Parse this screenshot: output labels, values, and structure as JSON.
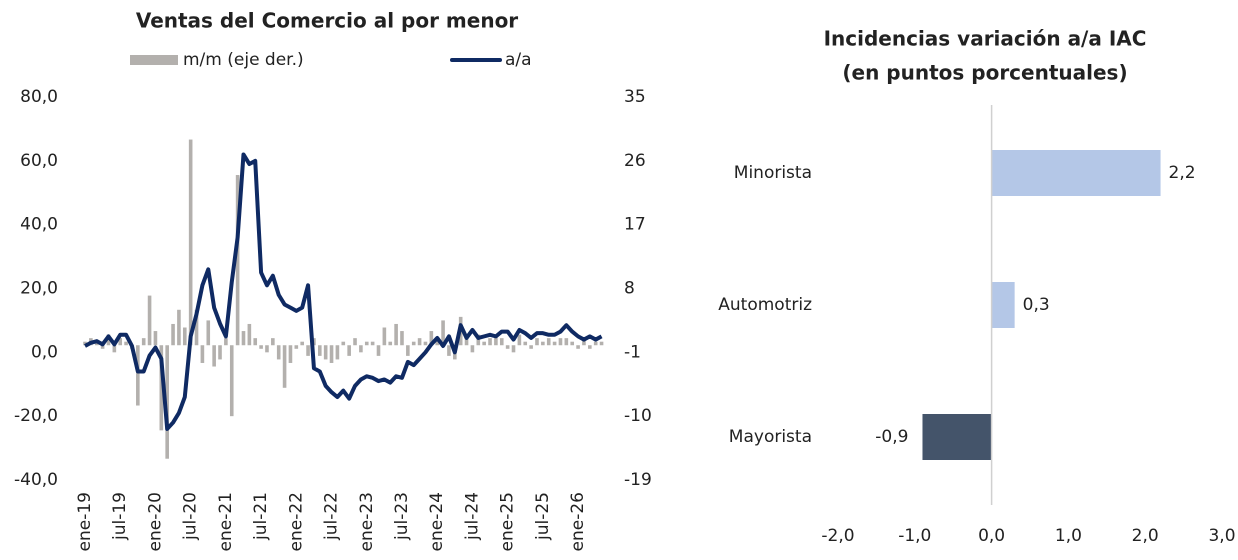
{
  "chart_data": [
    {
      "type": "bar-line",
      "title": "Ventas del Comercio al por menor",
      "categories": [
        "ene-19",
        null,
        null,
        null,
        null,
        null,
        "jul-19",
        null,
        null,
        null,
        null,
        null,
        "ene-20",
        null,
        null,
        null,
        null,
        null,
        "jul-20",
        null,
        null,
        null,
        null,
        null,
        "ene-21",
        null,
        null,
        null,
        null,
        null,
        "jul-21",
        null,
        null,
        null,
        null,
        null,
        "ene-22",
        null,
        null,
        null,
        null,
        null,
        "jul-22",
        null,
        null,
        null,
        null,
        null,
        "ene-23",
        null,
        null,
        null,
        null,
        null,
        "jul-23",
        null,
        null,
        null,
        null,
        null,
        "ene-24",
        null,
        null,
        null,
        null,
        null,
        "jul-24",
        null,
        null,
        null,
        null,
        null,
        "ene-25",
        null,
        null,
        null,
        null,
        null,
        "jul-25",
        null,
        null,
        null,
        null,
        null,
        "ene-26",
        null,
        null,
        null,
        null
      ],
      "series": [
        {
          "name": "m/m (eje der.)",
          "mark": "bar",
          "axis": "y2",
          "color": "#b3b0ad",
          "values": [
            0.5,
            1,
            0.5,
            -0.5,
            1.5,
            -1,
            1,
            0.5,
            -0.5,
            -8.5,
            1,
            7,
            2,
            -12,
            -16,
            3,
            5,
            2.5,
            29,
            5,
            -2.5,
            3.5,
            -3,
            -2,
            1,
            -10,
            24,
            2,
            3,
            1,
            -0.5,
            -1,
            1,
            -2,
            -6,
            -2.5,
            -0.5,
            0.5,
            -1.5,
            1,
            -1.5,
            -2,
            -2.5,
            -2,
            0.5,
            -1.5,
            1,
            -1,
            0.5,
            0.5,
            -1.5,
            2.5,
            0.5,
            3,
            2,
            -1.5,
            0.5,
            1,
            0.5,
            2,
            1,
            3.5,
            -1.5,
            -2,
            4,
            1,
            -1,
            1.5,
            0.5,
            1,
            1.5,
            1,
            -0.5,
            -1,
            1.5,
            0.5,
            -0.5,
            1,
            0.5,
            1,
            0.5,
            1,
            1,
            0.5,
            -0.5,
            1,
            -0.5,
            0.5,
            0.5
          ]
        },
        {
          "name": "a/a",
          "mark": "line",
          "color": "#0f2a63",
          "values": [
            2,
            3,
            3.5,
            2.5,
            5,
            2.5,
            5.5,
            5.5,
            2,
            -6,
            -6,
            -1,
            1.5,
            -2,
            -24,
            -22,
            -19,
            -14,
            5,
            12,
            21,
            26,
            14,
            9,
            5,
            22,
            36,
            62,
            59,
            60,
            25,
            21,
            24,
            18,
            15,
            14,
            13,
            14,
            21,
            -5,
            -6,
            -10.5,
            -12.5,
            -14,
            -12,
            -14.5,
            -10.5,
            -8.5,
            -7.5,
            -8,
            -9,
            -8.5,
            -9.5,
            -7.5,
            -8,
            -3,
            -4,
            -2,
            0,
            2.5,
            4.5,
            2,
            5,
            0,
            8.5,
            4.5,
            7,
            4.5,
            5,
            5.5,
            5,
            6.5,
            6.5,
            4,
            7,
            6,
            4.5,
            6,
            6,
            5.5,
            5.5,
            6.5,
            8.5,
            6.5,
            5,
            4,
            5,
            4,
            5
          ]
        }
      ],
      "ylim": [
        -40,
        80
      ],
      "yticks": [
        {
          "value": -40,
          "label": "-40,0"
        },
        {
          "value": -20,
          "label": "-20,0"
        },
        {
          "value": 0,
          "label": "0,0"
        },
        {
          "value": 20,
          "label": "20,0"
        },
        {
          "value": 40,
          "label": "40,0"
        },
        {
          "value": 60,
          "label": "60,0"
        },
        {
          "value": 80,
          "label": "80,0"
        }
      ],
      "y2lim": [
        -19,
        35
      ],
      "y2ticks": [
        -19,
        -10,
        -1,
        8,
        17,
        26,
        35
      ]
    },
    {
      "type": "barh",
      "title": [
        "Incidencias variación a/a IAC",
        "(en puntos porcentuales)"
      ],
      "categories": [
        "Minorista",
        "Automotriz",
        "Mayorista"
      ],
      "values": [
        2.2,
        0.3,
        -0.9
      ],
      "value_labels": [
        "2,2",
        "0,3",
        "-0,9"
      ],
      "colors": [
        "#b4c7e7",
        "#b4c7e7",
        "#44546a"
      ],
      "xlim": [
        -2,
        3
      ],
      "xticks": [
        {
          "value": -2,
          "label": "-2,0"
        },
        {
          "value": -1,
          "label": "-1,0"
        },
        {
          "value": 0,
          "label": "0,0"
        },
        {
          "value": 1,
          "label": "1,0"
        },
        {
          "value": 2,
          "label": "2,0"
        },
        {
          "value": 3,
          "label": "3,0"
        }
      ]
    }
  ]
}
